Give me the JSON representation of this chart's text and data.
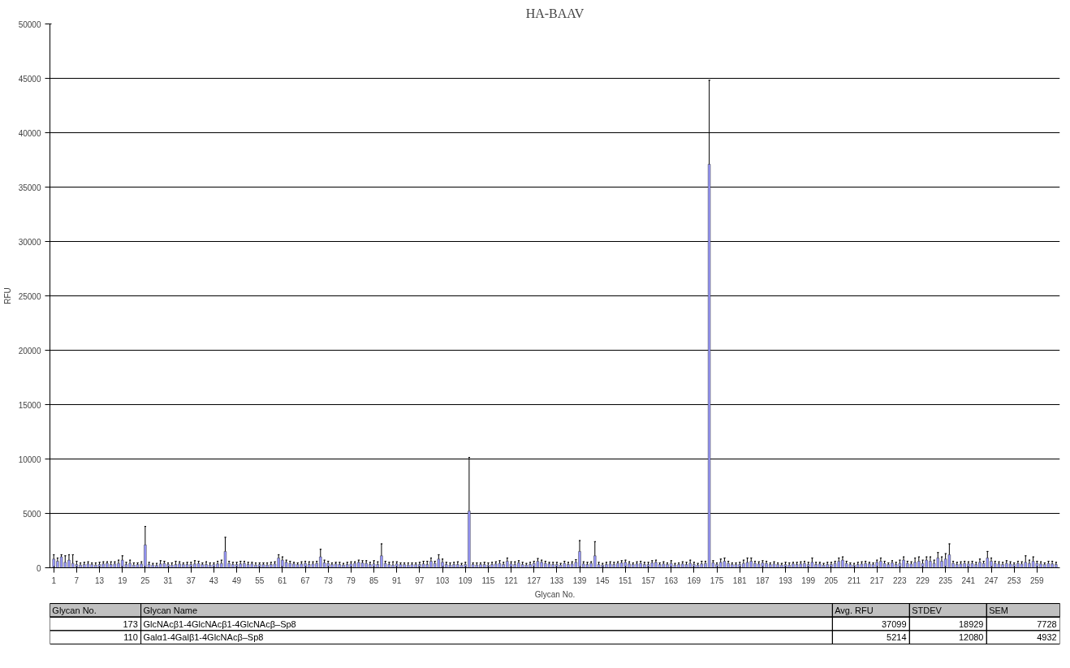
{
  "chart_data": {
    "type": "bar",
    "title": "HA-BAAV",
    "xlabel": "Glycan No.",
    "ylabel": "RFU",
    "x": [
      1,
      2,
      3,
      4,
      5,
      6,
      7,
      8,
      9,
      10,
      11,
      12,
      13,
      14,
      15,
      16,
      17,
      18,
      19,
      20,
      21,
      22,
      23,
      24,
      25,
      26,
      27,
      28,
      29,
      30,
      31,
      32,
      33,
      34,
      35,
      36,
      37,
      38,
      39,
      40,
      41,
      42,
      43,
      44,
      45,
      46,
      47,
      48,
      49,
      50,
      51,
      52,
      53,
      54,
      55,
      56,
      57,
      58,
      59,
      60,
      61,
      62,
      63,
      64,
      65,
      66,
      67,
      68,
      69,
      70,
      71,
      72,
      73,
      74,
      75,
      76,
      77,
      78,
      79,
      80,
      81,
      82,
      83,
      84,
      85,
      86,
      87,
      88,
      89,
      90,
      91,
      92,
      93,
      94,
      95,
      96,
      97,
      98,
      99,
      100,
      101,
      102,
      103,
      104,
      105,
      106,
      107,
      108,
      109,
      110,
      111,
      112,
      113,
      114,
      115,
      116,
      117,
      118,
      119,
      120,
      121,
      122,
      123,
      124,
      125,
      126,
      127,
      128,
      129,
      130,
      131,
      132,
      133,
      134,
      135,
      136,
      137,
      138,
      139,
      140,
      141,
      142,
      143,
      144,
      145,
      146,
      147,
      148,
      149,
      150,
      151,
      152,
      153,
      154,
      155,
      156,
      157,
      158,
      159,
      160,
      161,
      162,
      163,
      164,
      165,
      166,
      167,
      168,
      169,
      170,
      171,
      172,
      173,
      174,
      175,
      176,
      177,
      178,
      179,
      180,
      181,
      182,
      183,
      184,
      185,
      186,
      187,
      188,
      189,
      190,
      191,
      192,
      193,
      194,
      195,
      196,
      197,
      198,
      199,
      200,
      201,
      202,
      203,
      204,
      205,
      206,
      207,
      208,
      209,
      210,
      211,
      212,
      213,
      214,
      215,
      216,
      217,
      218,
      219,
      220,
      221,
      222,
      223,
      224,
      225,
      226,
      227,
      228,
      229,
      230,
      231,
      232,
      233,
      234,
      235,
      236,
      237,
      238,
      239,
      240,
      241,
      242,
      243,
      244,
      245,
      246,
      247,
      248,
      249,
      250,
      251,
      252,
      253,
      254,
      255,
      256,
      257,
      258,
      259,
      260,
      261,
      262,
      263,
      264
    ],
    "values": [
      800,
      600,
      1000,
      500,
      700,
      400,
      300,
      250,
      300,
      350,
      300,
      250,
      300,
      350,
      400,
      300,
      350,
      400,
      700,
      300,
      400,
      250,
      300,
      350,
      2100,
      300,
      250,
      200,
      350,
      400,
      300,
      250,
      300,
      350,
      300,
      300,
      300,
      350,
      400,
      300,
      300,
      250,
      300,
      350,
      400,
      1500,
      400,
      300,
      300,
      350,
      400,
      300,
      350,
      250,
      300,
      300,
      250,
      300,
      350,
      900,
      700,
      500,
      400,
      350,
      300,
      350,
      400,
      300,
      350,
      400,
      1000,
      450,
      400,
      300,
      350,
      300,
      250,
      300,
      350,
      400,
      500,
      450,
      400,
      300,
      350,
      300,
      1100,
      400,
      300,
      250,
      350,
      300,
      300,
      250,
      300,
      300,
      300,
      350,
      300,
      600,
      400,
      800,
      500,
      300,
      250,
      300,
      300,
      250,
      300,
      5214,
      300,
      250,
      300,
      300,
      250,
      300,
      350,
      400,
      300,
      600,
      350,
      300,
      450,
      300,
      250,
      300,
      400,
      600,
      500,
      400,
      350,
      300,
      300,
      250,
      400,
      300,
      350,
      500,
      1500,
      350,
      300,
      400,
      1100,
      300,
      250,
      300,
      350,
      300,
      400,
      450,
      500,
      350,
      300,
      350,
      400,
      300,
      300,
      450,
      500,
      300,
      350,
      300,
      400,
      250,
      300,
      350,
      300,
      400,
      300,
      250,
      350,
      400,
      37099,
      450,
      300,
      500,
      600,
      400,
      300,
      300,
      300,
      400,
      500,
      600,
      400,
      350,
      450,
      400,
      300,
      350,
      300,
      250,
      300,
      250,
      350,
      300,
      350,
      400,
      300,
      500,
      300,
      350,
      250,
      300,
      300,
      400,
      600,
      700,
      400,
      300,
      250,
      300,
      350,
      400,
      350,
      300,
      500,
      600,
      400,
      300,
      450,
      300,
      400,
      700,
      400,
      350,
      500,
      600,
      400,
      700,
      600,
      400,
      900,
      600,
      800,
      1200,
      400,
      300,
      350,
      400,
      350,
      400,
      300,
      500,
      400,
      900,
      600,
      400,
      350,
      300,
      400,
      350,
      300,
      400,
      350,
      500,
      400,
      600,
      400,
      350,
      300,
      400,
      350,
      300
    ],
    "errors": [
      [
        800,
        1200
      ],
      [
        600,
        900
      ],
      [
        1000,
        1200
      ],
      [
        500,
        1100
      ],
      [
        700,
        1200
      ],
      [
        400,
        1200
      ],
      [
        300,
        600
      ],
      [
        250,
        450
      ],
      [
        300,
        500
      ],
      [
        350,
        550
      ],
      [
        300,
        450
      ],
      [
        250,
        450
      ],
      [
        300,
        500
      ],
      [
        350,
        550
      ],
      [
        400,
        550
      ],
      [
        300,
        550
      ],
      [
        350,
        550
      ],
      [
        400,
        700
      ],
      [
        700,
        1100
      ],
      [
        300,
        500
      ],
      [
        400,
        700
      ],
      [
        250,
        450
      ],
      [
        300,
        450
      ],
      [
        350,
        550
      ],
      [
        2100,
        3800
      ],
      [
        300,
        500
      ],
      [
        250,
        400
      ],
      [
        200,
        400
      ],
      [
        350,
        650
      ],
      [
        400,
        600
      ],
      [
        300,
        450
      ],
      [
        250,
        450
      ],
      [
        300,
        600
      ],
      [
        350,
        550
      ],
      [
        300,
        450
      ],
      [
        300,
        500
      ],
      [
        300,
        500
      ],
      [
        350,
        650
      ],
      [
        400,
        600
      ],
      [
        300,
        450
      ],
      [
        300,
        550
      ],
      [
        250,
        450
      ],
      [
        300,
        450
      ],
      [
        350,
        600
      ],
      [
        400,
        700
      ],
      [
        1500,
        2800
      ],
      [
        400,
        600
      ],
      [
        300,
        500
      ],
      [
        300,
        500
      ],
      [
        350,
        600
      ],
      [
        400,
        600
      ],
      [
        300,
        500
      ],
      [
        350,
        500
      ],
      [
        250,
        450
      ],
      [
        300,
        450
      ],
      [
        300,
        450
      ],
      [
        250,
        450
      ],
      [
        300,
        500
      ],
      [
        350,
        550
      ],
      [
        900,
        1200
      ],
      [
        700,
        1000
      ],
      [
        500,
        700
      ],
      [
        400,
        600
      ],
      [
        350,
        500
      ],
      [
        300,
        450
      ],
      [
        350,
        550
      ],
      [
        400,
        600
      ],
      [
        300,
        550
      ],
      [
        350,
        550
      ],
      [
        400,
        600
      ],
      [
        1000,
        1700
      ],
      [
        450,
        700
      ],
      [
        400,
        600
      ],
      [
        300,
        450
      ],
      [
        350,
        500
      ],
      [
        300,
        500
      ],
      [
        250,
        400
      ],
      [
        300,
        500
      ],
      [
        350,
        550
      ],
      [
        400,
        550
      ],
      [
        500,
        700
      ],
      [
        450,
        650
      ],
      [
        400,
        650
      ],
      [
        300,
        500
      ],
      [
        350,
        650
      ],
      [
        300,
        550
      ],
      [
        1100,
        2200
      ],
      [
        400,
        600
      ],
      [
        300,
        500
      ],
      [
        250,
        550
      ],
      [
        350,
        550
      ],
      [
        300,
        450
      ],
      [
        300,
        450
      ],
      [
        250,
        450
      ],
      [
        300,
        450
      ],
      [
        300,
        450
      ],
      [
        300,
        500
      ],
      [
        350,
        600
      ],
      [
        300,
        600
      ],
      [
        600,
        900
      ],
      [
        400,
        600
      ],
      [
        800,
        1200
      ],
      [
        500,
        800
      ],
      [
        300,
        500
      ],
      [
        250,
        450
      ],
      [
        300,
        500
      ],
      [
        300,
        550
      ],
      [
        250,
        400
      ],
      [
        300,
        500
      ],
      [
        5214,
        10146
      ],
      [
        300,
        450
      ],
      [
        250,
        450
      ],
      [
        300,
        450
      ],
      [
        300,
        500
      ],
      [
        250,
        450
      ],
      [
        300,
        500
      ],
      [
        350,
        550
      ],
      [
        400,
        650
      ],
      [
        300,
        500
      ],
      [
        600,
        900
      ],
      [
        350,
        550
      ],
      [
        300,
        550
      ],
      [
        450,
        650
      ],
      [
        300,
        500
      ],
      [
        250,
        400
      ],
      [
        300,
        500
      ],
      [
        400,
        600
      ],
      [
        600,
        850
      ],
      [
        500,
        700
      ],
      [
        400,
        600
      ],
      [
        350,
        500
      ],
      [
        300,
        500
      ],
      [
        300,
        500
      ],
      [
        250,
        400
      ],
      [
        400,
        600
      ],
      [
        300,
        500
      ],
      [
        350,
        550
      ],
      [
        500,
        750
      ],
      [
        1500,
        2500
      ],
      [
        350,
        550
      ],
      [
        300,
        500
      ],
      [
        400,
        550
      ],
      [
        1100,
        2400
      ],
      [
        300,
        500
      ],
      [
        250,
        400
      ],
      [
        300,
        500
      ],
      [
        350,
        550
      ],
      [
        300,
        500
      ],
      [
        400,
        550
      ],
      [
        450,
        650
      ],
      [
        500,
        700
      ],
      [
        350,
        550
      ],
      [
        300,
        450
      ],
      [
        350,
        550
      ],
      [
        400,
        600
      ],
      [
        300,
        500
      ],
      [
        300,
        500
      ],
      [
        450,
        650
      ],
      [
        500,
        700
      ],
      [
        300,
        450
      ],
      [
        350,
        550
      ],
      [
        300,
        450
      ],
      [
        400,
        650
      ],
      [
        250,
        400
      ],
      [
        300,
        450
      ],
      [
        350,
        550
      ],
      [
        300,
        500
      ],
      [
        400,
        700
      ],
      [
        300,
        500
      ],
      [
        250,
        400
      ],
      [
        350,
        600
      ],
      [
        400,
        600
      ],
      [
        37099,
        44827
      ],
      [
        450,
        650
      ],
      [
        300,
        450
      ],
      [
        500,
        800
      ],
      [
        600,
        900
      ],
      [
        400,
        600
      ],
      [
        300,
        450
      ],
      [
        300,
        450
      ],
      [
        300,
        500
      ],
      [
        400,
        700
      ],
      [
        500,
        900
      ],
      [
        600,
        900
      ],
      [
        400,
        600
      ],
      [
        350,
        550
      ],
      [
        450,
        650
      ],
      [
        400,
        600
      ],
      [
        300,
        450
      ],
      [
        350,
        550
      ],
      [
        300,
        450
      ],
      [
        250,
        400
      ],
      [
        300,
        500
      ],
      [
        250,
        450
      ],
      [
        350,
        500
      ],
      [
        300,
        500
      ],
      [
        350,
        550
      ],
      [
        400,
        600
      ],
      [
        300,
        500
      ],
      [
        500,
        900
      ],
      [
        300,
        500
      ],
      [
        350,
        500
      ],
      [
        250,
        400
      ],
      [
        300,
        500
      ],
      [
        300,
        500
      ],
      [
        400,
        600
      ],
      [
        600,
        900
      ],
      [
        700,
        1000
      ],
      [
        400,
        600
      ],
      [
        300,
        450
      ],
      [
        250,
        400
      ],
      [
        300,
        500
      ],
      [
        350,
        550
      ],
      [
        400,
        600
      ],
      [
        350,
        500
      ],
      [
        300,
        450
      ],
      [
        500,
        700
      ],
      [
        600,
        900
      ],
      [
        400,
        600
      ],
      [
        300,
        450
      ],
      [
        450,
        650
      ],
      [
        300,
        500
      ],
      [
        400,
        700
      ],
      [
        700,
        1000
      ],
      [
        400,
        600
      ],
      [
        350,
        550
      ],
      [
        500,
        900
      ],
      [
        600,
        1000
      ],
      [
        400,
        700
      ],
      [
        700,
        1000
      ],
      [
        600,
        1000
      ],
      [
        400,
        700
      ],
      [
        900,
        1400
      ],
      [
        600,
        1000
      ],
      [
        800,
        1300
      ],
      [
        1200,
        2200
      ],
      [
        400,
        600
      ],
      [
        300,
        500
      ],
      [
        350,
        550
      ],
      [
        400,
        600
      ],
      [
        350,
        550
      ],
      [
        400,
        600
      ],
      [
        300,
        500
      ],
      [
        500,
        800
      ],
      [
        400,
        600
      ],
      [
        900,
        1500
      ],
      [
        600,
        900
      ],
      [
        400,
        600
      ],
      [
        350,
        550
      ],
      [
        300,
        500
      ],
      [
        400,
        650
      ],
      [
        350,
        550
      ],
      [
        300,
        450
      ],
      [
        400,
        600
      ],
      [
        350,
        550
      ],
      [
        500,
        1100
      ],
      [
        400,
        700
      ],
      [
        600,
        1000
      ],
      [
        400,
        600
      ],
      [
        350,
        550
      ],
      [
        300,
        450
      ],
      [
        400,
        600
      ],
      [
        350,
        600
      ],
      [
        300,
        500
      ]
    ],
    "color": "#9999ff",
    "xlim": [
      0,
      265
    ],
    "xticks": [
      1,
      7,
      13,
      19,
      25,
      31,
      37,
      43,
      49,
      55,
      61,
      67,
      73,
      79,
      85,
      91,
      97,
      103,
      109,
      115,
      121,
      127,
      133,
      139,
      145,
      151,
      157,
      163,
      169,
      175,
      181,
      187,
      193,
      199,
      205,
      211,
      217,
      223,
      229,
      235,
      241,
      247,
      253,
      259
    ],
    "ylim": [
      0,
      50000
    ],
    "yticks": [
      0,
      5000,
      10000,
      15000,
      20000,
      25000,
      30000,
      35000,
      40000,
      45000,
      50000
    ],
    "grid": "y",
    "annotations": [
      "Glycan No.",
      "Glycan Name",
      "Avg. RFU",
      "STDEV",
      "SEM",
      "173",
      "GlcNAcβ1-4GlcNAcβ1-4GlcNAcβ–Sp8",
      "37099",
      "18929",
      "7728",
      "110",
      "Galα1-4Galβ1-4GlcNAcβ–Sp8",
      "5214",
      "12080",
      "4932"
    ]
  }
}
